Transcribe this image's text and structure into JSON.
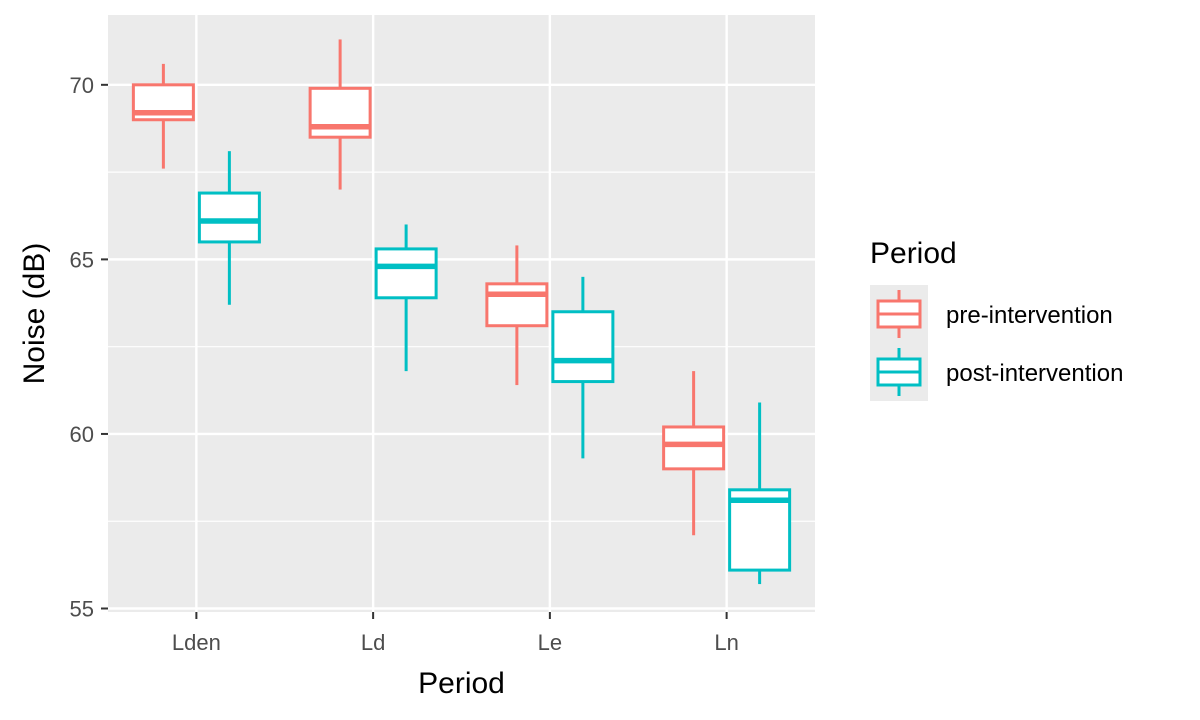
{
  "chart_data": {
    "type": "boxplot",
    "title": "",
    "xlabel": "Period",
    "ylabel": "Noise (dB)",
    "ylim": [
      54.9,
      72.0
    ],
    "yticks": [
      55,
      60,
      65,
      70
    ],
    "y_minor_ticks": [
      57.5,
      62.5,
      67.5
    ],
    "grid": true,
    "categories": [
      "Lden",
      "Ld",
      "Le",
      "Ln"
    ],
    "legend": {
      "title": "Period",
      "position": "right",
      "entries": [
        "pre-intervention",
        "post-intervention"
      ]
    },
    "series": [
      {
        "name": "pre-intervention",
        "color": "#F8766D",
        "boxes": [
          {
            "category": "Lden",
            "min": 67.6,
            "q1": 69.0,
            "median": 69.2,
            "q3": 70.0,
            "max": 70.6
          },
          {
            "category": "Ld",
            "min": 67.0,
            "q1": 68.5,
            "median": 68.8,
            "q3": 69.9,
            "max": 71.3
          },
          {
            "category": "Le",
            "min": 61.4,
            "q1": 63.1,
            "median": 64.0,
            "q3": 64.3,
            "max": 65.4
          },
          {
            "category": "Ln",
            "min": 57.1,
            "q1": 59.0,
            "median": 59.7,
            "q3": 60.2,
            "max": 61.8
          }
        ]
      },
      {
        "name": "post-intervention",
        "color": "#00BFC4",
        "boxes": [
          {
            "category": "Lden",
            "min": 63.7,
            "q1": 65.5,
            "median": 66.1,
            "q3": 66.9,
            "max": 68.1
          },
          {
            "category": "Ld",
            "min": 61.8,
            "q1": 63.9,
            "median": 64.8,
            "q3": 65.3,
            "max": 66.0
          },
          {
            "category": "Le",
            "min": 59.3,
            "q1": 61.5,
            "median": 62.1,
            "q3": 63.5,
            "max": 64.5
          },
          {
            "category": "Ln",
            "min": 55.7,
            "q1": 56.1,
            "median": 58.1,
            "q3": 58.4,
            "max": 60.9
          }
        ]
      }
    ]
  }
}
